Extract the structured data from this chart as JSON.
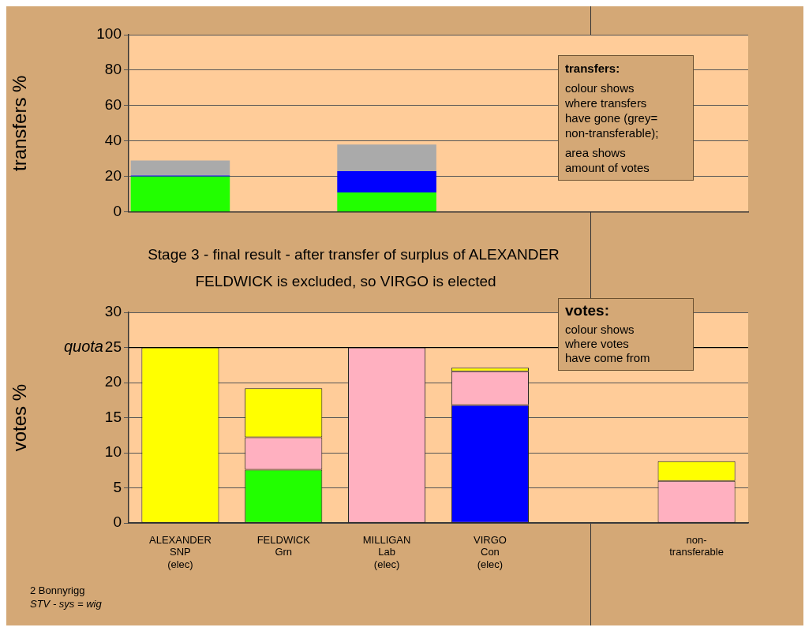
{
  "chart_data": [
    {
      "type": "bar",
      "ylabel": "transfers %",
      "categories": [
        null,
        null,
        null,
        null,
        null,
        null
      ],
      "stacked": true,
      "grid": "y",
      "tick_labels": "y",
      "ylim": [
        0,
        100
      ],
      "yticks": [
        0,
        20,
        40,
        60,
        80,
        100
      ],
      "series": [
        {
          "color": "#22ff00",
          "values": [
            20,
            null,
            11,
            null,
            null,
            null
          ]
        },
        {
          "color": "#0000ff",
          "values": [
            0.5,
            null,
            12,
            null,
            null,
            null
          ]
        },
        {
          "color": "#aaaaaa",
          "values": [
            8.5,
            null,
            15,
            null,
            null,
            null
          ]
        }
      ],
      "annotations": [
        "transfers:",
        "colour shows\nwhere transfers\nhave gone (grey=\nnon-transferable);",
        "area shows\namount of votes"
      ]
    },
    {
      "type": "bar",
      "title": "Stage 3 - final result - after transfer of surplus of ALEXANDER",
      "subtitle": "FELDWICK is excluded, so VIRGO is elected",
      "ylabel": "votes %",
      "categories": [
        "ALEXANDER\nSNP\n(elec)",
        "FELDWICK\nGrn",
        "MILLIGAN\nLab\n(elec)",
        "VIRGO\nCon\n(elec)",
        null,
        "non-\ntransferable"
      ],
      "stacked": true,
      "grid": "y",
      "ylim": [
        0,
        30
      ],
      "yticks": [
        0,
        5,
        10,
        15,
        20,
        25,
        30
      ],
      "series": [
        {
          "color": "#22ff00",
          "values": [
            null,
            7.6,
            null,
            null,
            null,
            null
          ]
        },
        {
          "color": "#0000ff",
          "values": [
            null,
            null,
            null,
            16.8,
            null,
            null
          ]
        },
        {
          "color": "#ffb0c0",
          "values": [
            null,
            4.6,
            25,
            4.8,
            null,
            6
          ]
        },
        {
          "color": "#ffff00",
          "values": [
            25,
            7,
            null,
            0.5,
            null,
            2.8
          ]
        }
      ],
      "ref_lines": [
        {
          "axis": "y",
          "value": 25,
          "label": "quota",
          "color": "#000000"
        }
      ],
      "annotations": [
        "votes:",
        "colour shows\nwhere votes\nhave come from",
        "2 Bonnyrigg",
        "STV - sys = wig"
      ]
    }
  ]
}
